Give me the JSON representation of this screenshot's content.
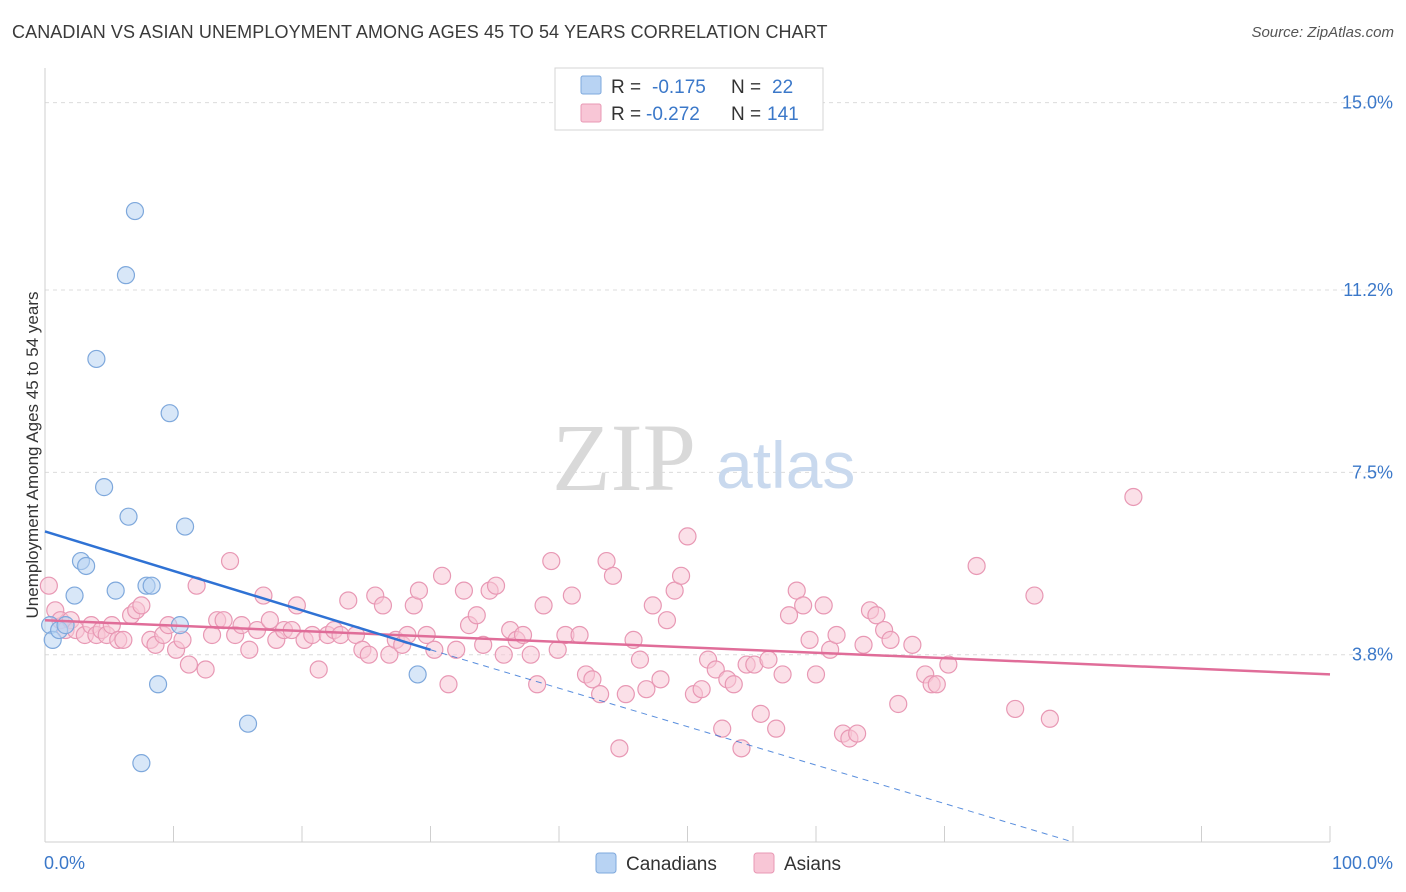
{
  "title": "CANADIAN VS ASIAN UNEMPLOYMENT AMONG AGES 45 TO 54 YEARS CORRELATION CHART",
  "source": "Source: ZipAtlas.com",
  "watermark": {
    "zip": "ZIP",
    "atlas": "atlas"
  },
  "colors": {
    "canadians_fill": "#b8d3f3",
    "canadians_stroke": "#7ea8dc",
    "canadians_line": "#2f72d4",
    "asians_fill": "#f8c6d6",
    "asians_stroke": "#e898b4",
    "asians_line": "#e06d99",
    "tick": "#3b78c9",
    "grid": "#dcdcdc"
  },
  "legend": {
    "rows": [
      {
        "r_label": "R = ",
        "r_value": "-0.175",
        "n_label": "N = ",
        "n_value": "22"
      },
      {
        "r_label": "R = ",
        "r_value": "-0.272",
        "n_label": "N = ",
        "n_value": "141"
      }
    ]
  },
  "bottom_legend": {
    "canadians": "Canadians",
    "asians": "Asians"
  },
  "chart_data": {
    "type": "scatter",
    "ylabel": "Unemployment Among Ages 45 to 54 years",
    "xlim": [
      0,
      100
    ],
    "ylim": [
      0,
      15.5
    ],
    "x_tick_labels": [
      "0.0%",
      "100.0%"
    ],
    "y_ticks": [
      3.8,
      7.5,
      11.2,
      15.0
    ],
    "y_tick_labels": [
      "3.8%",
      "7.5%",
      "11.2%",
      "15.0%"
    ],
    "grid": "horizontal dashed",
    "series": [
      {
        "name": "Canadians",
        "points": [
          [
            0.4,
            4.4
          ],
          [
            0.6,
            4.1
          ],
          [
            1.1,
            4.3
          ],
          [
            1.6,
            4.4
          ],
          [
            2.3,
            5.0
          ],
          [
            2.8,
            5.7
          ],
          [
            3.2,
            5.6
          ],
          [
            4.0,
            9.8
          ],
          [
            4.6,
            7.2
          ],
          [
            5.5,
            5.1
          ],
          [
            6.3,
            11.5
          ],
          [
            6.5,
            6.6
          ],
          [
            7.0,
            12.8
          ],
          [
            7.5,
            1.6
          ],
          [
            7.9,
            5.2
          ],
          [
            8.3,
            5.2
          ],
          [
            8.8,
            3.2
          ],
          [
            9.7,
            8.7
          ],
          [
            10.5,
            4.4
          ],
          [
            10.9,
            6.4
          ],
          [
            15.8,
            2.4
          ],
          [
            29.0,
            3.4
          ]
        ],
        "trend": {
          "x": [
            0,
            30
          ],
          "y": [
            6.3,
            3.9
          ]
        },
        "trend_extension": {
          "x": [
            30,
            80
          ],
          "y": [
            3.9,
            0
          ]
        }
      },
      {
        "name": "Asians",
        "points": [
          [
            0.3,
            5.2
          ],
          [
            0.8,
            4.7
          ],
          [
            1.2,
            4.5
          ],
          [
            1.6,
            4.3
          ],
          [
            2.0,
            4.5
          ],
          [
            2.4,
            4.3
          ],
          [
            3.1,
            4.2
          ],
          [
            3.6,
            4.4
          ],
          [
            4.0,
            4.2
          ],
          [
            4.4,
            4.3
          ],
          [
            4.8,
            4.2
          ],
          [
            5.2,
            4.4
          ],
          [
            5.7,
            4.1
          ],
          [
            6.1,
            4.1
          ],
          [
            6.7,
            4.6
          ],
          [
            7.1,
            4.7
          ],
          [
            7.5,
            4.8
          ],
          [
            8.2,
            4.1
          ],
          [
            8.6,
            4.0
          ],
          [
            9.2,
            4.2
          ],
          [
            9.6,
            4.4
          ],
          [
            10.2,
            3.9
          ],
          [
            10.7,
            4.1
          ],
          [
            11.2,
            3.6
          ],
          [
            11.8,
            5.2
          ],
          [
            12.5,
            3.5
          ],
          [
            13.0,
            4.2
          ],
          [
            13.4,
            4.5
          ],
          [
            13.9,
            4.5
          ],
          [
            14.4,
            5.7
          ],
          [
            14.8,
            4.2
          ],
          [
            15.3,
            4.4
          ],
          [
            15.9,
            3.9
          ],
          [
            16.5,
            4.3
          ],
          [
            17.0,
            5.0
          ],
          [
            17.5,
            4.5
          ],
          [
            18.0,
            4.1
          ],
          [
            18.6,
            4.3
          ],
          [
            19.2,
            4.3
          ],
          [
            19.6,
            4.8
          ],
          [
            20.2,
            4.1
          ],
          [
            20.8,
            4.2
          ],
          [
            21.3,
            3.5
          ],
          [
            22.0,
            4.2
          ],
          [
            22.5,
            4.3
          ],
          [
            23.0,
            4.2
          ],
          [
            23.6,
            4.9
          ],
          [
            24.2,
            4.2
          ],
          [
            24.7,
            3.9
          ],
          [
            25.2,
            3.8
          ],
          [
            25.7,
            5.0
          ],
          [
            26.3,
            4.8
          ],
          [
            26.8,
            3.8
          ],
          [
            27.3,
            4.1
          ],
          [
            27.8,
            4.0
          ],
          [
            28.2,
            4.2
          ],
          [
            28.7,
            4.8
          ],
          [
            29.1,
            5.1
          ],
          [
            29.7,
            4.2
          ],
          [
            30.3,
            3.9
          ],
          [
            30.9,
            5.4
          ],
          [
            31.4,
            3.2
          ],
          [
            32.0,
            3.9
          ],
          [
            32.6,
            5.1
          ],
          [
            33.0,
            4.4
          ],
          [
            33.6,
            4.6
          ],
          [
            34.1,
            4.0
          ],
          [
            34.6,
            5.1
          ],
          [
            35.1,
            5.2
          ],
          [
            35.7,
            3.8
          ],
          [
            36.2,
            4.3
          ],
          [
            36.7,
            4.1
          ],
          [
            37.2,
            4.2
          ],
          [
            37.8,
            3.8
          ],
          [
            38.3,
            3.2
          ],
          [
            38.8,
            4.8
          ],
          [
            39.4,
            5.7
          ],
          [
            39.9,
            3.9
          ],
          [
            40.5,
            4.2
          ],
          [
            41.0,
            5.0
          ],
          [
            41.6,
            4.2
          ],
          [
            42.1,
            3.4
          ],
          [
            42.6,
            3.3
          ],
          [
            43.2,
            3.0
          ],
          [
            43.7,
            5.7
          ],
          [
            44.2,
            5.4
          ],
          [
            44.7,
            1.9
          ],
          [
            45.2,
            3.0
          ],
          [
            45.8,
            4.1
          ],
          [
            46.3,
            3.7
          ],
          [
            46.8,
            3.1
          ],
          [
            47.3,
            4.8
          ],
          [
            47.9,
            3.3
          ],
          [
            48.4,
            4.5
          ],
          [
            49.0,
            5.1
          ],
          [
            49.5,
            5.4
          ],
          [
            50.0,
            6.2
          ],
          [
            50.5,
            3.0
          ],
          [
            51.1,
            3.1
          ],
          [
            51.6,
            3.7
          ],
          [
            52.2,
            3.5
          ],
          [
            52.7,
            2.3
          ],
          [
            53.1,
            3.3
          ],
          [
            53.6,
            3.2
          ],
          [
            54.2,
            1.9
          ],
          [
            54.6,
            3.6
          ],
          [
            55.2,
            3.6
          ],
          [
            55.7,
            2.6
          ],
          [
            56.3,
            3.7
          ],
          [
            56.9,
            2.3
          ],
          [
            57.4,
            3.4
          ],
          [
            57.9,
            4.6
          ],
          [
            58.5,
            5.1
          ],
          [
            59.0,
            4.8
          ],
          [
            59.5,
            4.1
          ],
          [
            60.0,
            3.4
          ],
          [
            60.6,
            4.8
          ],
          [
            61.1,
            3.9
          ],
          [
            61.6,
            4.2
          ],
          [
            62.1,
            2.2
          ],
          [
            62.6,
            2.1
          ],
          [
            63.2,
            2.2
          ],
          [
            63.7,
            4.0
          ],
          [
            64.2,
            4.7
          ],
          [
            64.7,
            4.6
          ],
          [
            65.3,
            4.3
          ],
          [
            65.8,
            4.1
          ],
          [
            66.4,
            2.8
          ],
          [
            67.5,
            4.0
          ],
          [
            68.5,
            3.4
          ],
          [
            69.0,
            3.2
          ],
          [
            69.4,
            3.2
          ],
          [
            70.3,
            3.6
          ],
          [
            72.5,
            5.6
          ],
          [
            75.5,
            2.7
          ],
          [
            77.0,
            5.0
          ],
          [
            78.2,
            2.5
          ],
          [
            84.7,
            7.0
          ]
        ],
        "trend": {
          "x": [
            0,
            100
          ],
          "y": [
            4.5,
            3.4
          ]
        }
      }
    ]
  }
}
